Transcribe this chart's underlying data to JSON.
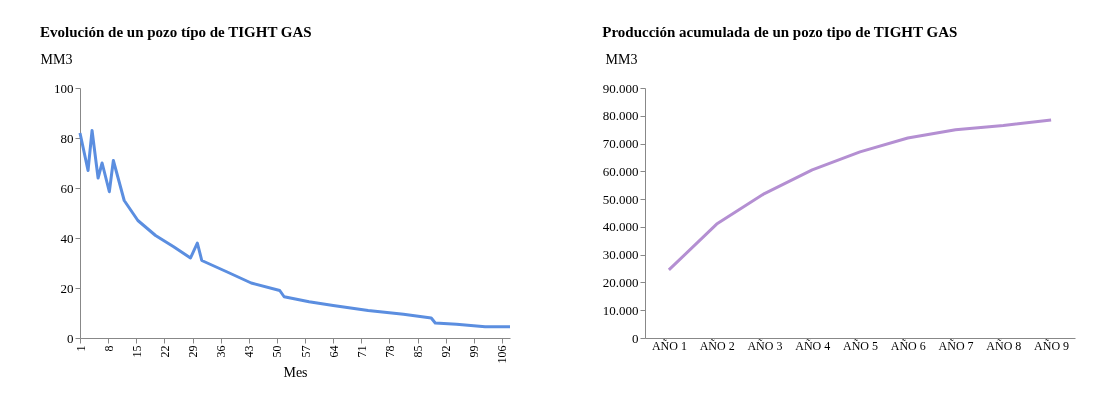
{
  "chart_data": [
    {
      "type": "line",
      "title": "Evolución de un pozo típo de TIGHT GAS",
      "xlabel": "Mes",
      "ylabel": "MM3",
      "grid": false,
      "marker": "none",
      "line_style": "solid",
      "xlim": [
        1,
        108
      ],
      "xticks": [
        1,
        8,
        15,
        22,
        29,
        36,
        43,
        50,
        57,
        64,
        71,
        78,
        85,
        92,
        99,
        106
      ],
      "ylim": [
        0,
        100
      ],
      "yticks": [
        0,
        20,
        40,
        60,
        80,
        100
      ],
      "series": [
        {
          "color": "#5b8ee0",
          "x": [
            1,
            3,
            4,
            5.5,
            6.5,
            8.3,
            9.3,
            12,
            15.4,
            19.8,
            24.3,
            28.5,
            30.2,
            31.3,
            37.5,
            43.6,
            50.7,
            51.8,
            58,
            64,
            72.7,
            81.5,
            88.4,
            89.4,
            94.7,
            101.8,
            108
          ],
          "values": [
            82,
            67,
            83,
            64,
            70,
            58.5,
            71,
            55,
            47,
            41,
            36.5,
            32,
            38,
            31,
            26.5,
            22,
            19,
            16.5,
            14.5,
            13,
            11,
            9.5,
            8,
            6,
            5.5,
            4.5,
            4.5
          ]
        }
      ]
    },
    {
      "type": "line",
      "title": "Producción acumulada de un pozo tipo de TIGHT GAS",
      "ylabel": "MM3",
      "grid": false,
      "marker": "none",
      "line_style": "solid",
      "categories": [
        "AÑO 1",
        "AÑO 2",
        "AÑO 3",
        "AÑO 4",
        "AÑO 5",
        "AÑO 6",
        "AÑO 7",
        "AÑO 8",
        "AÑO 9"
      ],
      "ylim": [
        0,
        90000
      ],
      "yticks": [
        0,
        {
          "value": 10000,
          "label": "10.000"
        },
        {
          "value": 20000,
          "label": "20.000"
        },
        {
          "value": 30000,
          "label": "30.000"
        },
        {
          "value": 40000,
          "label": "40.000"
        },
        {
          "value": 50000,
          "label": "50.000"
        },
        {
          "value": 60000,
          "label": "60.000"
        },
        {
          "value": 70000,
          "label": "70.000"
        },
        {
          "value": 80000,
          "label": "80.000"
        },
        {
          "value": 90000,
          "label": "90.000"
        }
      ],
      "series": [
        {
          "color": "#b48fd2",
          "values": [
            24500,
            41000,
            52000,
            60500,
            67000,
            72000,
            75000,
            76500,
            78500
          ]
        }
      ]
    }
  ]
}
